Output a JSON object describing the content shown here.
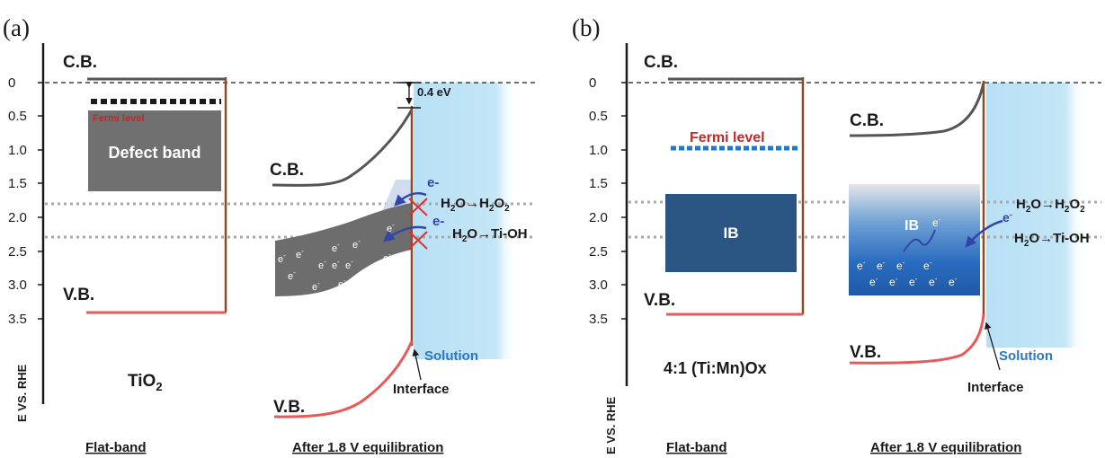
{
  "colors": {
    "axis": "#1a1a1a",
    "cb_line": "#555555",
    "vb_line": "#e85a5a",
    "interface_line": "#8b4a2b",
    "solution_fill": "#bfe4f6",
    "defect_band": "#707070",
    "ib_flat": "#2b5582",
    "fermi_red": "#c0292a",
    "fermi_dotted_blue": "#1f78c8",
    "arrow_blue": "#3344aa",
    "cross_red": "#e03030",
    "solution_text": "#2a78c2",
    "reference_gray": "#aaaaaa"
  },
  "panel_a": {
    "panel_label": "(a)",
    "y_ticks": [
      "0",
      "0.5",
      "1.0",
      "1.5",
      "2.0",
      "2.5",
      "3.0",
      "3.5"
    ],
    "y_axis_label": "E VS. RHE",
    "cb_label": "C.B.",
    "fermi_label": "Fermi level",
    "defect_label": "Defect band",
    "vb_label": "V.B.",
    "material": "TiO",
    "material_subscript": "2",
    "flat_label": "Flat-band",
    "eq_cb_label": "C.B.",
    "eq_vb_label": "V.B.",
    "offset_label": "0.4 eV",
    "electron": "e",
    "electron_super": "-",
    "electron_minus": "e-",
    "reaction1_pre": "H",
    "reaction1_mid1": "O→H",
    "reaction1_mid2": "O",
    "reaction2_pre": "H",
    "reaction2_post": "O→Ti-OH",
    "sub2": "2",
    "solution_label": "Solution",
    "interface_label": "Interface",
    "after_label": "After 1.8 V equilibration"
  },
  "panel_b": {
    "panel_label": "(b)",
    "y_ticks": [
      "0",
      "0.5",
      "1.0",
      "1.5",
      "2.0",
      "2.5",
      "3.0",
      "3.5"
    ],
    "y_axis_label": "E VS. RHE",
    "cb_label": "C.B.",
    "fermi_label": "Fermi level",
    "ib_label": "IB",
    "vb_label": "V.B.",
    "material": "4:1 (Ti:Mn)Ox",
    "flat_label": "Flat-band",
    "eq_cb_label": "C.B.",
    "eq_vb_label": "V.B.",
    "eq_ib_label": "IB",
    "electron": "e",
    "electron_super": "-",
    "reaction1_pre": "H",
    "reaction1_mid1": "O→H",
    "reaction1_mid2": "O",
    "reaction2_pre": "H",
    "reaction2_post": "O→Ti-OH",
    "sub2": "2",
    "solution_label": "Solution",
    "interface_label": "Interface",
    "after_label": "After 1.8 V equilibration"
  }
}
